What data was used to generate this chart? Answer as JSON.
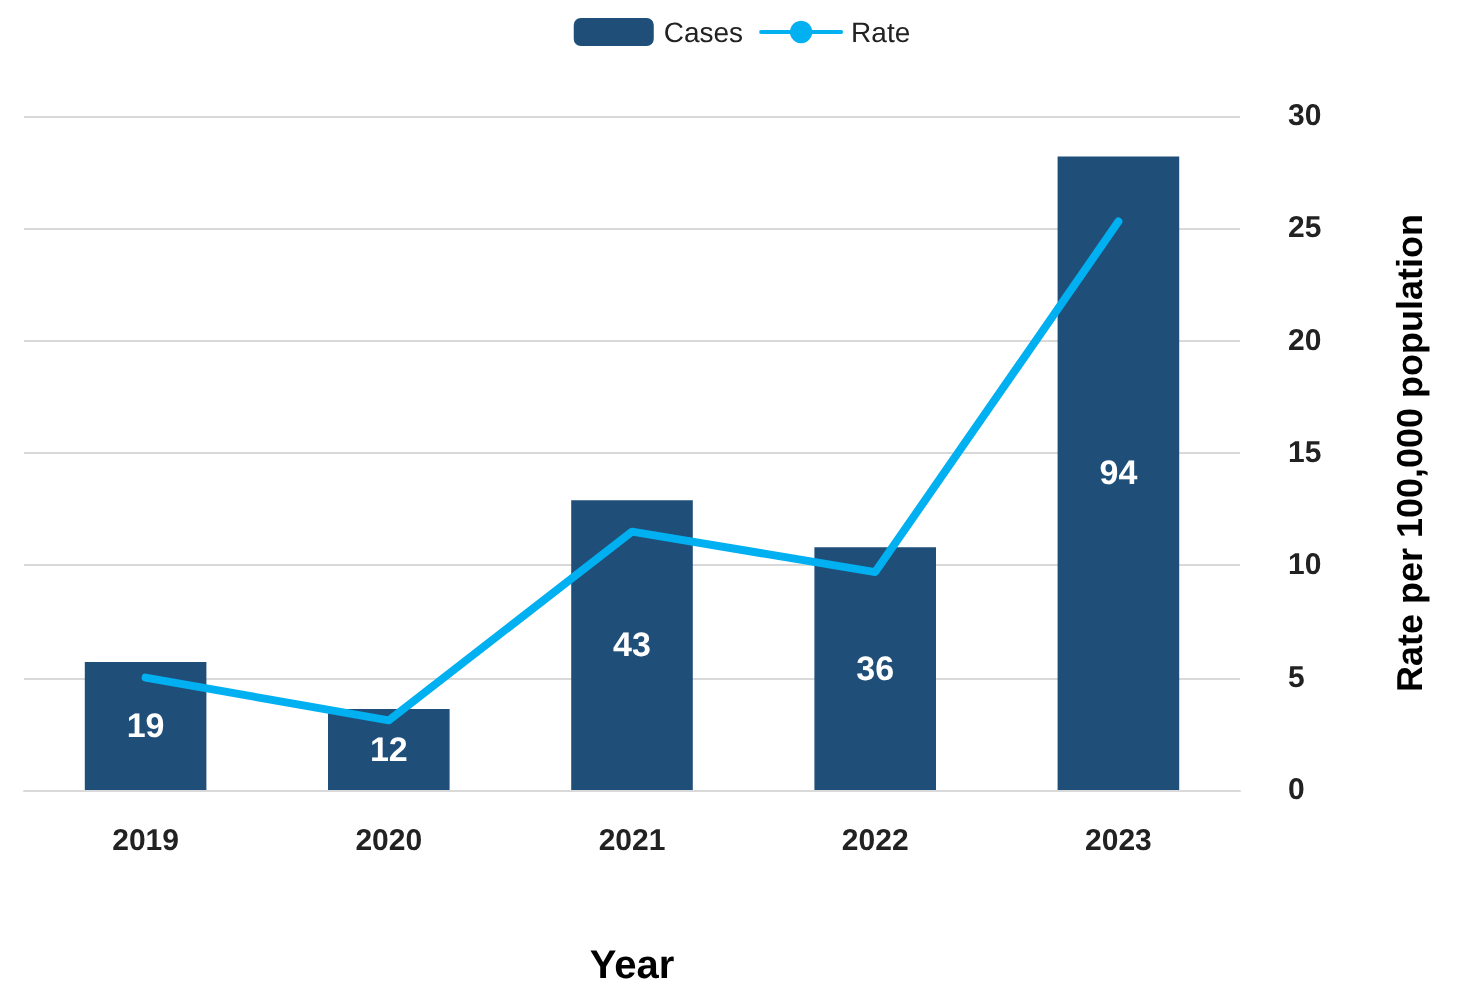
{
  "chart_data": {
    "type": "bar",
    "categories": [
      "2019",
      "2020",
      "2021",
      "2022",
      "2023"
    ],
    "series": [
      {
        "name": "Cases",
        "color": "#1f4e79",
        "values": [
          19,
          12,
          43,
          36,
          94
        ],
        "value_labels": [
          "19",
          "12",
          "43",
          "36",
          "94"
        ]
      },
      {
        "name": "Rate",
        "type": "line",
        "axis": "y2",
        "color": "#00b0f0",
        "values": [
          5.0,
          3.1,
          11.5,
          9.7,
          25.3
        ]
      }
    ],
    "ylim": [
      0,
      100
    ],
    "y2lim": [
      0,
      30
    ],
    "y2ticks": [
      0,
      5,
      10,
      15,
      20,
      25,
      30
    ],
    "xlabel": "Year",
    "y2label": "Rate per 100,000 population",
    "grid": true,
    "legend": "top",
    "marker": "none"
  }
}
